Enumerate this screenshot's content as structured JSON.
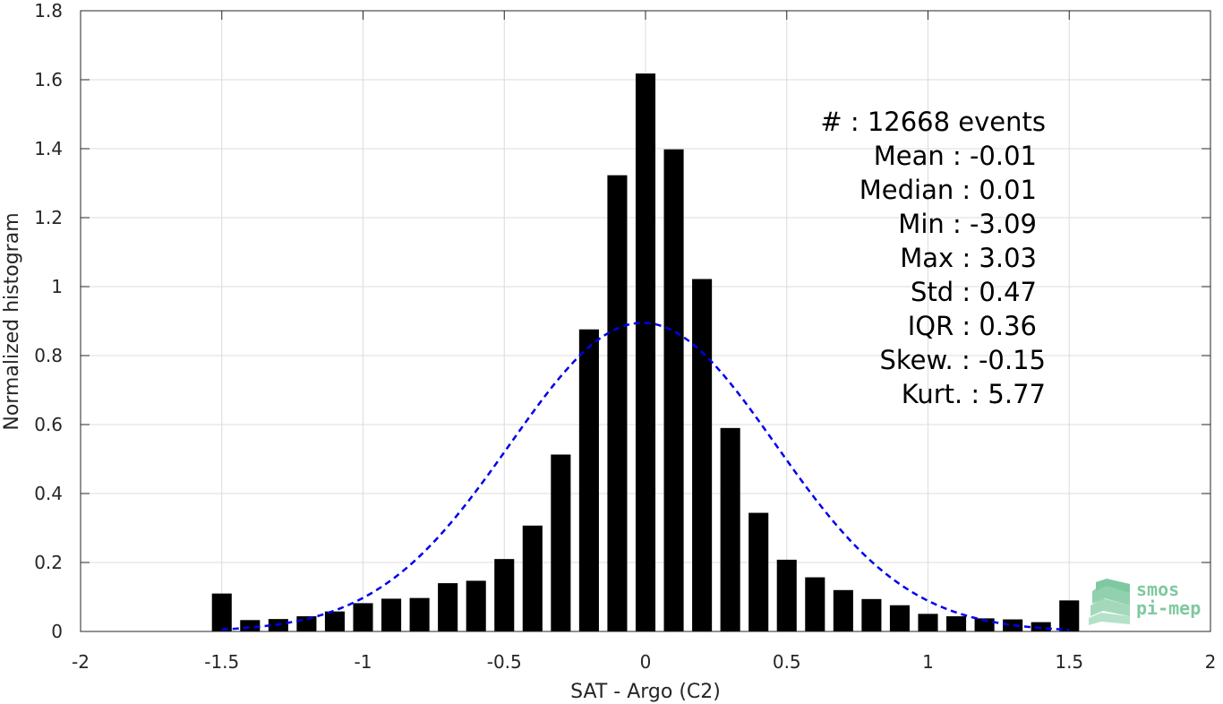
{
  "chart_data": {
    "type": "bar",
    "xlabel": "SAT - Argo (C2)",
    "ylabel": "Normalized histogram",
    "xlim": [
      -2,
      2
    ],
    "ylim": [
      0,
      1.8
    ],
    "grid": true,
    "xticks": [
      "-2",
      "-1.5",
      "-1",
      "-0.5",
      "0",
      "0.5",
      "1",
      "1.5",
      "2"
    ],
    "yticks": [
      "0",
      "0.2",
      "0.4",
      "0.6",
      "0.8",
      "1",
      "1.2",
      "1.4",
      "1.6",
      "1.8"
    ],
    "bin_centers": [
      -1.5,
      -1.4,
      -1.3,
      -1.2,
      -1.1,
      -1.0,
      -0.9,
      -0.8,
      -0.7,
      -0.6,
      -0.5,
      -0.4,
      -0.3,
      -0.2,
      -0.1,
      0.0,
      0.1,
      0.2,
      0.3,
      0.4,
      0.5,
      0.6,
      0.7,
      0.8,
      0.9,
      1.0,
      1.1,
      1.2,
      1.3,
      1.4,
      1.5
    ],
    "values": [
      0.11,
      0.033,
      0.036,
      0.044,
      0.058,
      0.082,
      0.095,
      0.097,
      0.14,
      0.147,
      0.21,
      0.307,
      0.513,
      0.876,
      1.323,
      1.618,
      1.398,
      1.022,
      0.59,
      0.344,
      0.208,
      0.157,
      0.12,
      0.094,
      0.076,
      0.051,
      0.044,
      0.038,
      0.035,
      0.027,
      0.09
    ],
    "bar_color": "#000000",
    "gaussian_fit": {
      "mean": -0.01,
      "std": 0.47,
      "peak": 0.895,
      "x_range": [
        -1.5,
        1.5
      ],
      "color": "#0000ee",
      "style": "dashed"
    }
  },
  "stats": {
    "count": "#  : 12668 events",
    "mean": "Mean : -0.01",
    "median": "Median : 0.01",
    "min": "Min : -3.09",
    "max": "Max : 3.03",
    "std": "Std : 0.47",
    "iqr": "IQR : 0.36",
    "skew": "Skew. : -0.15",
    "kurt": "Kurt. : 5.77"
  },
  "logo": {
    "line1": "smos",
    "line2": "pi-mep",
    "color": "#7fc9a0"
  }
}
